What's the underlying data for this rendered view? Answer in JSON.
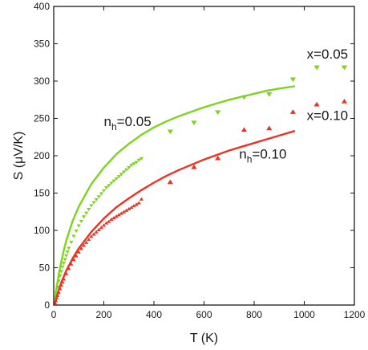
{
  "chart_data": {
    "type": "scatter",
    "xlabel": "T (K)",
    "ylabel": "S (μV/K)",
    "xlim": [
      0,
      1200
    ],
    "ylim": [
      0,
      400
    ],
    "x_ticks": [
      "0",
      "200",
      "400",
      "600",
      "800",
      "1000",
      "1200"
    ],
    "y_ticks": [
      "0",
      "50",
      "100",
      "150",
      "200",
      "250",
      "300",
      "350",
      "400"
    ],
    "grid": false,
    "legend": "none",
    "colors": {
      "green": "#7ed321",
      "red": "#ee3124",
      "axis": "#1a1a1a"
    },
    "annotations": [
      {
        "id": "x005",
        "text": "x=0.05",
        "at": [
          1010,
          330
        ]
      },
      {
        "id": "x010",
        "text": "x=0.10",
        "at": [
          1010,
          248
        ]
      },
      {
        "id": "nh005",
        "base": "n",
        "sub": "h",
        "suffix": "=0.05",
        "at": [
          200,
          240
        ]
      },
      {
        "id": "nh010",
        "base": "n",
        "sub": "h",
        "suffix": "=0.10",
        "at": [
          740,
          196
        ]
      }
    ],
    "series": [
      {
        "label": "x=0.05",
        "color": "#7ed321",
        "marker": "triangle-down",
        "x": [
          465,
          560,
          655,
          760,
          860,
          955,
          1050,
          1160
        ],
        "y": [
          232,
          244,
          258,
          278,
          282,
          302,
          318,
          318
        ]
      },
      {
        "label": "x=0.10",
        "color": "#ee3124",
        "marker": "triangle-up",
        "x": [
          465,
          560,
          655,
          760,
          860,
          955,
          1050,
          1160
        ],
        "y": [
          165,
          185,
          197,
          235,
          237,
          259,
          269,
          273
        ]
      }
    ],
    "dense_series": [
      {
        "color": "#7ed321",
        "marker": "triangle-down",
        "x": [
          10,
          15,
          20,
          25,
          30,
          35,
          40,
          45,
          50,
          55,
          60,
          70,
          80,
          90,
          100,
          110,
          120,
          130,
          140,
          150,
          160,
          170,
          180,
          190,
          200,
          210,
          220,
          230,
          240,
          250,
          260,
          270,
          280,
          290,
          300,
          310,
          320,
          330,
          340,
          350
        ],
        "y": [
          16,
          24,
          32,
          39,
          45,
          51,
          56,
          61,
          66,
          71,
          76,
          84,
          92,
          99,
          106,
          112,
          118,
          123,
          128,
          133,
          137,
          141,
          145,
          149,
          153,
          157,
          160,
          163,
          166,
          169,
          172,
          175,
          178,
          181,
          184,
          187,
          189,
          191,
          194,
          196
        ]
      },
      {
        "color": "#ee3124",
        "marker": "triangle-up",
        "x": [
          5,
          8,
          12,
          15,
          20,
          25,
          30,
          35,
          40,
          50,
          60,
          70,
          80,
          90,
          100,
          110,
          120,
          130,
          140,
          150,
          160,
          170,
          180,
          190,
          200,
          210,
          220,
          230,
          240,
          250,
          260,
          270,
          280,
          290,
          300,
          310,
          320,
          330,
          340,
          350
        ],
        "y": [
          3,
          6,
          10,
          13,
          17,
          22,
          27,
          31,
          35,
          42,
          49,
          55,
          61,
          66,
          71,
          76,
          80,
          84,
          88,
          92,
          95,
          98,
          101,
          104,
          107,
          110,
          112,
          115,
          117,
          119,
          121,
          123,
          125,
          127,
          129,
          131,
          133,
          135,
          137,
          142
        ]
      }
    ],
    "curves": [
      {
        "label": "nh=0.05",
        "color": "#7ed321",
        "x": [
          5,
          10,
          20,
          30,
          40,
          50,
          75,
          100,
          150,
          200,
          250,
          300,
          350,
          400,
          450,
          500,
          550,
          600,
          650,
          700,
          750,
          800,
          850,
          900,
          960
        ],
        "y": [
          8,
          20,
          41,
          58,
          73,
          86,
          112,
          132,
          162,
          184,
          202,
          216,
          228,
          238,
          246,
          253,
          259,
          265,
          270,
          275,
          279,
          283,
          287,
          290,
          293
        ]
      },
      {
        "label": "nh=0.10",
        "color": "#ee3124",
        "x": [
          5,
          10,
          20,
          30,
          40,
          50,
          75,
          100,
          150,
          200,
          250,
          300,
          350,
          400,
          450,
          500,
          550,
          600,
          650,
          700,
          750,
          800,
          850,
          900,
          960
        ],
        "y": [
          3,
          8,
          20,
          30,
          38,
          46,
          62,
          76,
          98,
          116,
          131,
          143,
          154,
          164,
          173,
          181,
          188,
          195,
          201,
          207,
          212,
          217,
          222,
          227,
          233
        ]
      }
    ]
  }
}
